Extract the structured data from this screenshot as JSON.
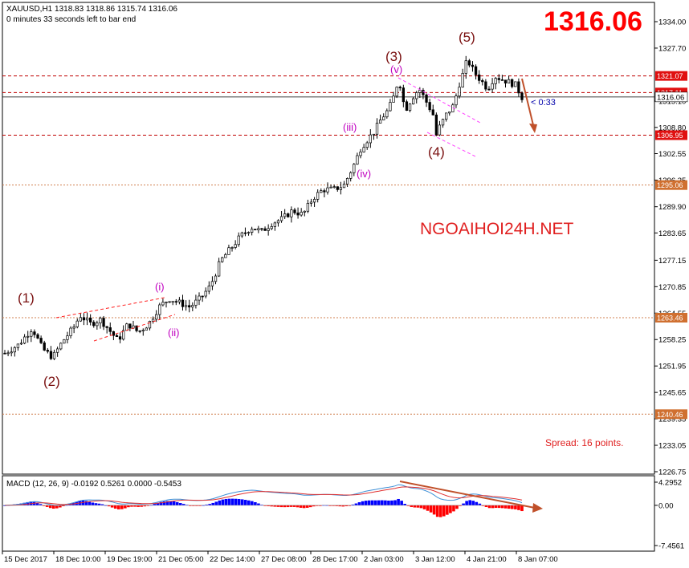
{
  "header": {
    "line1": "XAUUSD,H1  1318.83 1318.86 1315.74 1316.06",
    "line2": "0 minutes 33 seconds left to bar end"
  },
  "big_price": "1316.06",
  "watermark": "NGOAIHOI24H.NET",
  "spread_text": "Spread: 16 points.",
  "timer_text": "< 0:33",
  "macd_header": "MACD (12, 26, 9) -0.0192 0.5261 0.0000 -0.5453",
  "colors": {
    "candle": "#000000",
    "level_line": "#c00000",
    "level_badge": "#e01010",
    "wave_main": "#7a1010",
    "wave_sub": "#c000c0",
    "arrow": "#c0502a",
    "macd_pos": "#0000ff",
    "macd_neg": "#ff0000",
    "macd_line": "#3d8fd6",
    "signal_line": "#e03030"
  },
  "chart_data": {
    "type": "candlestick",
    "symbol": "XAUUSD",
    "timeframe": "H1",
    "ohlc_last": {
      "open": 1318.83,
      "high": 1318.86,
      "low": 1315.74,
      "close": 1316.06
    },
    "ylim": [
      1226.75,
      1334.0
    ],
    "y_ticks": [
      "1334.00",
      "1327.70",
      "1315.10",
      "1308.80",
      "1302.55",
      "1296.25",
      "1289.90",
      "1283.65",
      "1277.15",
      "1270.85",
      "1264.55",
      "1258.25",
      "1251.95",
      "1245.65",
      "1239.35",
      "1233.05",
      "1226.75"
    ],
    "levels": [
      {
        "value": 1321.07,
        "label": "1321.07",
        "style": "dashed"
      },
      {
        "value": 1317.11,
        "label": "1317.11",
        "style": "dashed"
      },
      {
        "value": 1306.95,
        "label": "1306.95",
        "style": "dashed"
      },
      {
        "value": 1295.06,
        "label": "1295.06",
        "style": "dotted"
      },
      {
        "value": 1263.46,
        "label": "1263.46",
        "style": "dotted"
      },
      {
        "value": 1240.46,
        "label": "1240.46",
        "style": "dotted"
      }
    ],
    "current_price": {
      "value": 1316.06,
      "label": "1316.06"
    },
    "x_ticks": [
      "15 Dec 2017",
      "18 Dec 10:00",
      "19 Dec 19:00",
      "21 Dec 05:00",
      "22 Dec 14:00",
      "27 Dec 08:00",
      "28 Dec 17:00",
      "2 Jan 03:00",
      "3 Jan 12:00",
      "4 Jan 21:00",
      "8 Jan 07:00"
    ],
    "close_path": [
      [
        0,
        1255
      ],
      [
        4,
        1257
      ],
      [
        8,
        1261
      ],
      [
        11,
        1256
      ],
      [
        14,
        1254
      ],
      [
        17,
        1258
      ],
      [
        20,
        1261
      ],
      [
        22,
        1264
      ],
      [
        25,
        1262
      ],
      [
        28,
        1263
      ],
      [
        31,
        1260
      ],
      [
        33,
        1258
      ],
      [
        36,
        1262
      ],
      [
        39,
        1260
      ],
      [
        42,
        1262
      ],
      [
        45,
        1266
      ],
      [
        48,
        1268
      ],
      [
        51,
        1267
      ],
      [
        54,
        1266
      ],
      [
        57,
        1268
      ],
      [
        60,
        1271
      ],
      [
        63,
        1277
      ],
      [
        66,
        1280
      ],
      [
        69,
        1283
      ],
      [
        72,
        1285
      ],
      [
        75,
        1284
      ],
      [
        78,
        1286
      ],
      [
        81,
        1287
      ],
      [
        84,
        1289
      ],
      [
        87,
        1288
      ],
      [
        90,
        1292
      ],
      [
        93,
        1294
      ],
      [
        96,
        1294
      ],
      [
        99,
        1295
      ],
      [
        102,
        1300
      ],
      [
        104,
        1304
      ],
      [
        106,
        1306
      ],
      [
        108,
        1308
      ],
      [
        110,
        1311
      ],
      [
        112,
        1313
      ],
      [
        114,
        1317
      ],
      [
        115,
        1321
      ],
      [
        116,
        1316
      ],
      [
        117,
        1313
      ],
      [
        119,
        1316
      ],
      [
        121,
        1318
      ],
      [
        123,
        1315
      ],
      [
        125,
        1312
      ],
      [
        126,
        1307
      ],
      [
        127,
        1309
      ],
      [
        129,
        1312
      ],
      [
        131,
        1314
      ],
      [
        133,
        1320
      ],
      [
        134,
        1322
      ],
      [
        135,
        1325
      ],
      [
        137,
        1322
      ],
      [
        139,
        1320
      ],
      [
        141,
        1318
      ],
      [
        143,
        1321
      ],
      [
        146,
        1320
      ],
      [
        149,
        1319
      ],
      [
        151,
        1316
      ]
    ],
    "wave_labels": [
      {
        "label": "(1)",
        "degree": "main"
      },
      {
        "label": "(2)",
        "degree": "main"
      },
      {
        "label": "(3)",
        "degree": "main"
      },
      {
        "label": "(4)",
        "degree": "main"
      },
      {
        "label": "(5)",
        "degree": "main"
      },
      {
        "label": "(i)",
        "degree": "sub"
      },
      {
        "label": "(ii)",
        "degree": "sub"
      },
      {
        "label": "(iii)",
        "degree": "sub"
      },
      {
        "label": "(iv)",
        "degree": "sub"
      },
      {
        "label": "(v)",
        "degree": "sub"
      }
    ],
    "macd": {
      "params": [
        12,
        26,
        9
      ],
      "values": {
        "main": -0.0192,
        "signal": 0.5261,
        "zero": 0.0,
        "hist": -0.5453
      },
      "ylim": [
        -7.4561,
        4.2952
      ],
      "y_ticks": [
        "4.2952",
        "0.00",
        "-7.4561"
      ]
    }
  }
}
